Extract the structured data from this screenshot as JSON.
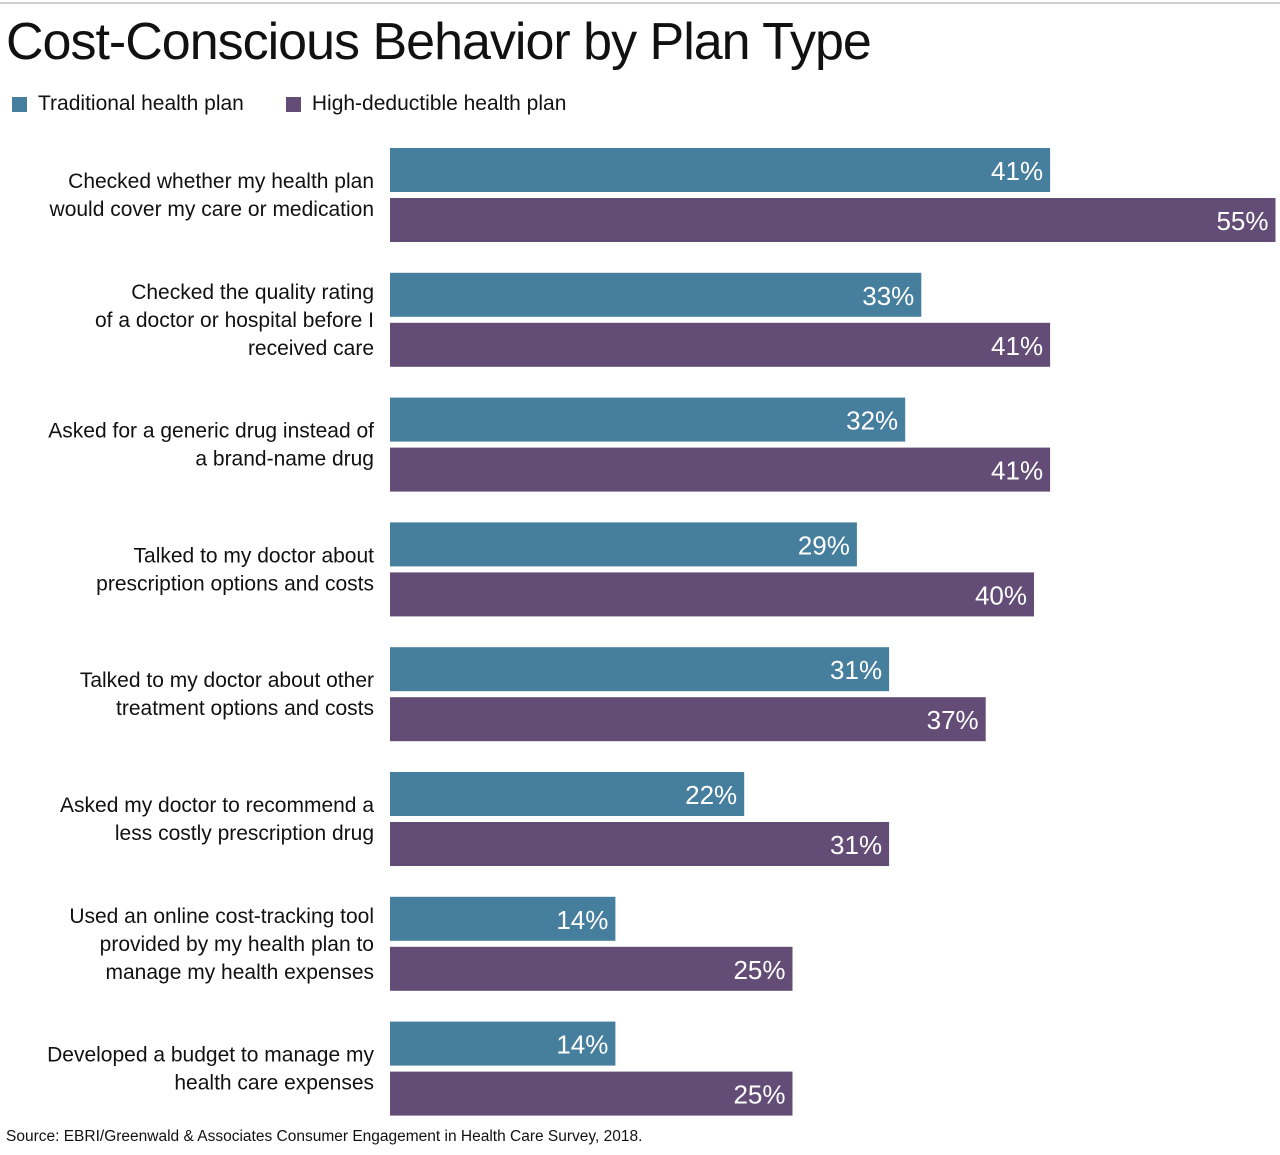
{
  "chart_data": {
    "type": "bar",
    "orientation": "horizontal",
    "title": "Cost-Conscious Behavior by Plan Type",
    "source": "Source: EBRI/Greenwald & Associates Consumer Engagement in Health Care Survey, 2018.",
    "categories": [
      [
        "Checked whether my health plan",
        "would cover my care or medication"
      ],
      [
        "Checked the quality rating",
        "of a doctor or hospital before I",
        "received care"
      ],
      [
        "Asked for a generic drug instead of",
        "a brand-name drug"
      ],
      [
        "Talked to my doctor about",
        "prescription options and costs"
      ],
      [
        "Talked to my doctor about other",
        "treatment options and costs"
      ],
      [
        "Asked my doctor to recommend a",
        "less costly prescription drug"
      ],
      [
        "Used an online cost-tracking tool",
        "provided by my health plan to",
        "manage my health expenses"
      ],
      [
        "Developed a budget to manage my",
        "health care expenses"
      ]
    ],
    "series": [
      {
        "name": "Traditional health plan",
        "color": "#467e9d",
        "values": [
          41,
          33,
          32,
          29,
          31,
          22,
          14,
          14
        ]
      },
      {
        "name": "High-deductible health plan",
        "color": "#634d77",
        "values": [
          55,
          41,
          41,
          40,
          37,
          31,
          25,
          25
        ]
      }
    ],
    "value_suffix": "%",
    "legend_position": "top-left",
    "grid": false
  }
}
